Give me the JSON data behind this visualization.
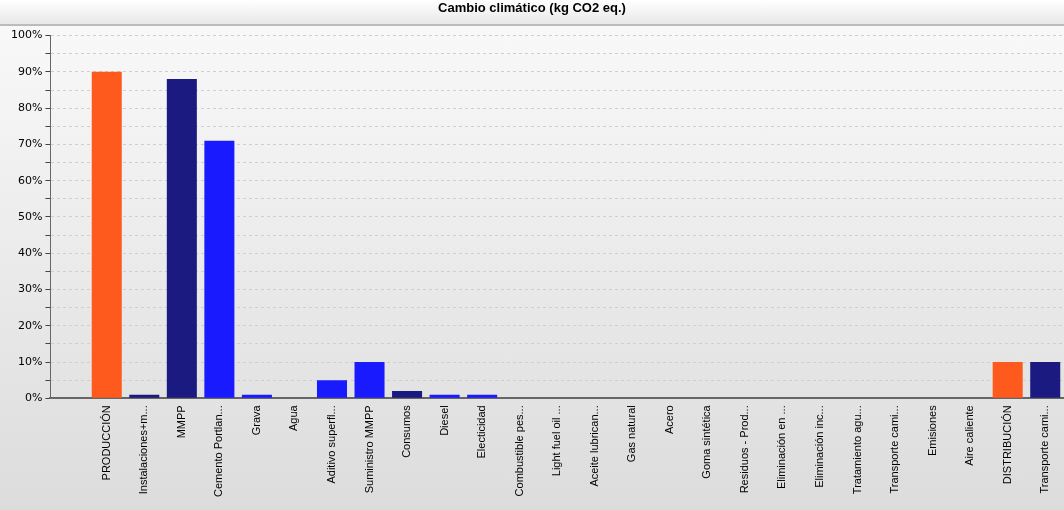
{
  "chart_data": {
    "type": "bar",
    "title": "Cambio climático (kg CO2 eq.)",
    "categories": [
      null,
      "PRODUCCIÓN",
      "Instalaciones+m...",
      "MMPP",
      "Cemento Portlan...",
      "Grava",
      "Agua",
      "Aditivo superfl...",
      "Suministro MMPP",
      "Consumos",
      "Diesel",
      "Electicidad",
      "Combustible pes...",
      "Light fuel oil ...",
      "Aceite lubrican...",
      "Gas natural",
      "Acero",
      "Goma sintética",
      "Residuos - Prod...",
      "Eliminación en ...",
      "Eliminación inc...",
      "Tratamiento agu...",
      "Transporte cami...",
      "Emisiones",
      "Aire caliente",
      "DISTRIBUCIÓN",
      "Transporte cami..."
    ],
    "values": [
      null,
      90,
      1,
      88,
      71,
      1,
      0,
      5,
      10,
      2,
      1,
      1,
      0,
      0,
      0,
      0,
      0,
      0,
      0,
      0,
      0,
      0,
      0,
      0,
      0,
      10,
      10
    ],
    "colors": [
      "#1a1aff",
      "#ff5a1e",
      "#1a1a80",
      "#1a1a80",
      "#1a1aff",
      "#1a1aff",
      "#1a1aff",
      "#1a1aff",
      "#1a1aff",
      "#1a1a80",
      "#1a1aff",
      "#1a1aff",
      "#1a1aff",
      "#1a1aff",
      "#1a1aff",
      "#1a1aff",
      "#1a1aff",
      "#1a1aff",
      "#1a1aff",
      "#1a1aff",
      "#1a1aff",
      "#1a1aff",
      "#1a1aff",
      "#1a1aff",
      "#1a1aff",
      "#ff5a1e",
      "#1a1a80"
    ],
    "ylim": [
      0,
      100
    ],
    "yticks": [
      {
        "value": 0,
        "label": "0%"
      },
      {
        "value": 5,
        "label": null
      },
      {
        "value": 10,
        "label": "10%"
      },
      {
        "value": 15,
        "label": null
      },
      {
        "value": 20,
        "label": "20%"
      },
      {
        "value": 25,
        "label": null
      },
      {
        "value": 30,
        "label": "30%"
      },
      {
        "value": 35,
        "label": null
      },
      {
        "value": 40,
        "label": "40%"
      },
      {
        "value": 45,
        "label": null
      },
      {
        "value": 50,
        "label": "50%"
      },
      {
        "value": 55,
        "label": null
      },
      {
        "value": 60,
        "label": "60%"
      },
      {
        "value": 65,
        "label": null
      },
      {
        "value": 70,
        "label": "70%"
      },
      {
        "value": 75,
        "label": null
      },
      {
        "value": 80,
        "label": "80%"
      },
      {
        "value": 85,
        "label": null
      },
      {
        "value": 90,
        "label": "90%"
      },
      {
        "value": 95,
        "label": null
      },
      {
        "value": 100,
        "label": "100%"
      }
    ],
    "grid": "y",
    "legend": false
  }
}
